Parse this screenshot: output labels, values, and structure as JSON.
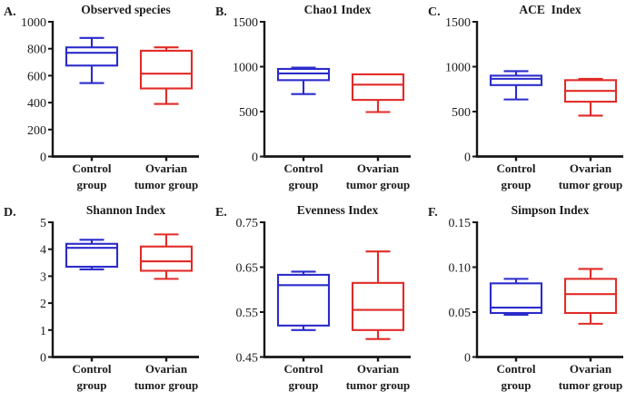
{
  "figure": {
    "background": "#ffffff",
    "axis_color": "#161616",
    "text_color": "#1c1c1c",
    "colors": {
      "control": "#2b2bcc",
      "tumor": "#e12b28"
    },
    "x_labels": [
      [
        "Control",
        "group"
      ],
      [
        "Ovarian",
        "tumor group"
      ]
    ]
  },
  "chart_data": [
    {
      "type": "box",
      "letter": "A.",
      "title": "Observed species",
      "categories": [
        "Control group",
        "Ovarian tumor group"
      ],
      "ylim": [
        0,
        1000
      ],
      "yticks": [
        {
          "value": 1000,
          "label": "1000"
        },
        {
          "value": 800,
          "label": "800"
        },
        {
          "value": 600,
          "label": "600"
        },
        {
          "value": 400,
          "label": "400"
        },
        {
          "value": 200,
          "label": "200"
        },
        {
          "value": 0,
          "label": "0"
        }
      ],
      "series": [
        {
          "name": "Control group",
          "color_key": "control",
          "whisker_low": 545,
          "q1": 675,
          "median": 770,
          "q3": 810,
          "whisker_high": 880
        },
        {
          "name": "Ovarian tumor group",
          "color_key": "tumor",
          "whisker_low": 390,
          "q1": 505,
          "median": 615,
          "q3": 785,
          "whisker_high": 810
        }
      ]
    },
    {
      "type": "box",
      "letter": "B.",
      "title": "Chao1 Index",
      "categories": [
        "Control group",
        "Ovarian tumor group"
      ],
      "ylim": [
        0,
        1500
      ],
      "yticks": [
        {
          "value": 1500,
          "label": "1500"
        },
        {
          "value": 1000,
          "label": "1000"
        },
        {
          "value": 500,
          "label": "500"
        },
        {
          "value": 0,
          "label": "0"
        }
      ],
      "series": [
        {
          "name": "Control group",
          "color_key": "control",
          "whisker_low": 695,
          "q1": 850,
          "median": 925,
          "q3": 975,
          "whisker_high": 990
        },
        {
          "name": "Ovarian tumor group",
          "color_key": "tumor",
          "whisker_low": 495,
          "q1": 630,
          "median": 800,
          "q3": 915,
          "whisker_high": 915
        }
      ]
    },
    {
      "type": "box",
      "letter": "C.",
      "title": "ACE  Index",
      "categories": [
        "Control group",
        "Ovarian tumor group"
      ],
      "ylim": [
        0,
        1500
      ],
      "yticks": [
        {
          "value": 1500,
          "label": "1500"
        },
        {
          "value": 1000,
          "label": "1000"
        },
        {
          "value": 500,
          "label": "500"
        },
        {
          "value": 0,
          "label": "0"
        }
      ],
      "series": [
        {
          "name": "Control group",
          "color_key": "control",
          "whisker_low": 635,
          "q1": 795,
          "median": 865,
          "q3": 900,
          "whisker_high": 950
        },
        {
          "name": "Ovarian tumor group",
          "color_key": "tumor",
          "whisker_low": 455,
          "q1": 610,
          "median": 730,
          "q3": 850,
          "whisker_high": 865
        }
      ]
    },
    {
      "type": "box",
      "letter": "D.",
      "title": "Shannon Index",
      "categories": [
        "Control group",
        "Ovarian tumor group"
      ],
      "ylim": [
        0,
        5
      ],
      "yticks": [
        {
          "value": 5,
          "label": "5"
        },
        {
          "value": 4,
          "label": "4"
        },
        {
          "value": 3,
          "label": "3"
        },
        {
          "value": 2,
          "label": "2"
        },
        {
          "value": 1,
          "label": "1"
        },
        {
          "value": 0,
          "label": "0"
        }
      ],
      "series": [
        {
          "name": "Control group",
          "color_key": "control",
          "whisker_low": 3.25,
          "q1": 3.35,
          "median": 4.05,
          "q3": 4.2,
          "whisker_high": 4.35
        },
        {
          "name": "Ovarian tumor group",
          "color_key": "tumor",
          "whisker_low": 2.9,
          "q1": 3.2,
          "median": 3.55,
          "q3": 4.1,
          "whisker_high": 4.55
        }
      ]
    },
    {
      "type": "box",
      "letter": "E.",
      "title": "Evenness Index",
      "categories": [
        "Control group",
        "Ovarian tumor group"
      ],
      "ylim": [
        0.45,
        0.75
      ],
      "yticks": [
        {
          "value": 0.75,
          "label": "0.75"
        },
        {
          "value": 0.65,
          "label": "0.65"
        },
        {
          "value": 0.55,
          "label": "0.55"
        },
        {
          "value": 0.45,
          "label": "0.45"
        }
      ],
      "series": [
        {
          "name": "Control group",
          "color_key": "control",
          "whisker_low": 0.51,
          "q1": 0.52,
          "median": 0.61,
          "q3": 0.633,
          "whisker_high": 0.64
        },
        {
          "name": "Ovarian tumor group",
          "color_key": "tumor",
          "whisker_low": 0.49,
          "q1": 0.51,
          "median": 0.555,
          "q3": 0.615,
          "whisker_high": 0.685
        }
      ]
    },
    {
      "type": "box",
      "letter": "F.",
      "title": "Simpson Index",
      "categories": [
        "Control group",
        "Ovarian tumor group"
      ],
      "ylim": [
        0,
        0.15
      ],
      "yticks": [
        {
          "value": 0.15,
          "label": "0.15"
        },
        {
          "value": 0.1,
          "label": "0.10"
        },
        {
          "value": 0.05,
          "label": "0.05"
        },
        {
          "value": 0,
          "label": "0"
        }
      ],
      "series": [
        {
          "name": "Control group",
          "color_key": "control",
          "whisker_low": 0.047,
          "q1": 0.049,
          "median": 0.055,
          "q3": 0.082,
          "whisker_high": 0.087
        },
        {
          "name": "Ovarian tumor group",
          "color_key": "tumor",
          "whisker_low": 0.037,
          "q1": 0.049,
          "median": 0.07,
          "q3": 0.087,
          "whisker_high": 0.098
        }
      ]
    }
  ]
}
